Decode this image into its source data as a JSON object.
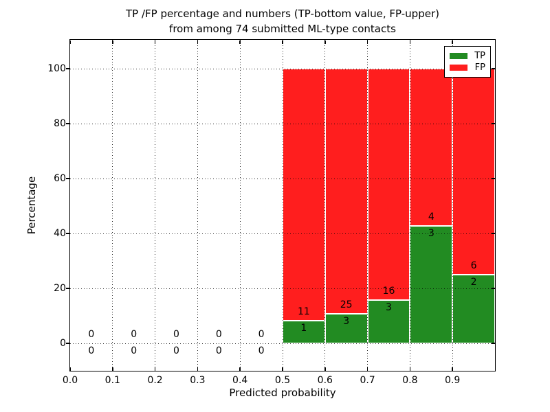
{
  "title": {
    "line1": "TP /FP percentage and numbers (TP-bottom value, FP-upper)",
    "line2": "from among 74 submitted ML-type contacts"
  },
  "x_axis": {
    "label": "Predicted probability",
    "tick_labels": [
      "0.0",
      "0.1",
      "0.2",
      "0.3",
      "0.4",
      "0.5",
      "0.6",
      "0.7",
      "0.8",
      "0.9"
    ]
  },
  "y_axis": {
    "label": "Percentage",
    "tick_labels": [
      "0",
      "20",
      "40",
      "60",
      "80",
      "100"
    ]
  },
  "legend": {
    "position": "upper right",
    "items": [
      {
        "label": "TP",
        "color": "#228b22"
      },
      {
        "label": "FP",
        "color": "#ff1e1e"
      }
    ]
  },
  "chart_data": {
    "type": "bar",
    "stacked": true,
    "normalization": "each non-empty bin stacked to 100%; TP bottom, FP upper",
    "title": "TP /FP percentage and numbers (TP-bottom value, FP-upper) from among 74 submitted ML-type contacts",
    "xlabel": "Predicted probability",
    "ylabel": "Percentage",
    "xlim": [
      0.0,
      1.0
    ],
    "ylim": [
      -10,
      110
    ],
    "grid": "dotted black, x and y, drawn above bars",
    "legend_position": "upper right",
    "total_contacts": 74,
    "bin_edges": [
      0.0,
      0.1,
      0.2,
      0.3,
      0.4,
      0.5,
      0.6,
      0.7,
      0.8,
      0.9,
      1.0
    ],
    "series": [
      {
        "name": "TP",
        "color": "#228b22",
        "counts": [
          0,
          0,
          0,
          0,
          0,
          1,
          3,
          3,
          3,
          2
        ]
      },
      {
        "name": "FP",
        "color": "#ff1e1e",
        "counts": [
          0,
          0,
          0,
          0,
          0,
          11,
          25,
          16,
          4,
          6
        ]
      }
    ],
    "tp_percent_per_bin": [
      0,
      0,
      0,
      0,
      0,
      8.33,
      10.71,
      15.79,
      42.86,
      25.0
    ],
    "fp_percent_per_bin": [
      0,
      0,
      0,
      0,
      0,
      91.67,
      89.29,
      84.21,
      57.14,
      75.0
    ],
    "upper_annotations_fp_counts": [
      "0",
      "0",
      "0",
      "0",
      "0",
      "11",
      "25",
      "16",
      "4",
      "6"
    ],
    "lower_annotations_tp_counts": [
      "0",
      "0",
      "0",
      "0",
      "0",
      "1",
      "3",
      "3",
      "3",
      "2"
    ]
  }
}
